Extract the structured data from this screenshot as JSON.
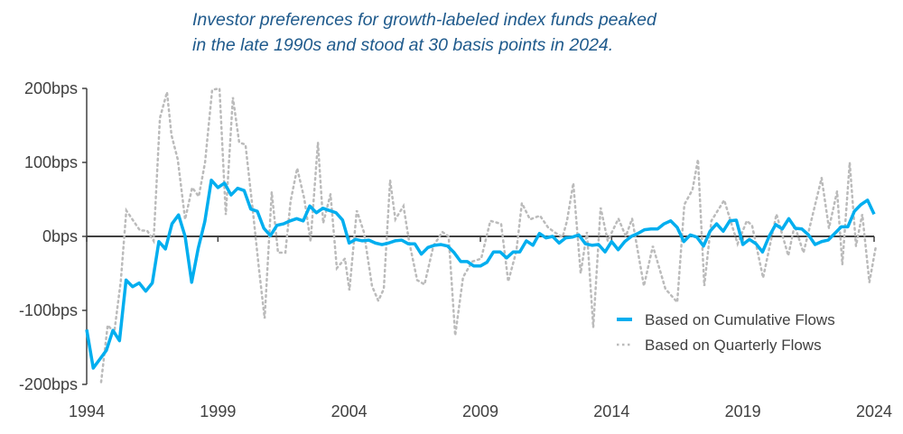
{
  "chart_data": {
    "type": "line",
    "title": "Investor preferences for growth-labeled index funds peaked in the late 1990s and stood at 30 basis points in 2024.",
    "title_lines": [
      "Investor preferences for growth-labeled index funds peaked",
      "in the late 1990s and stood at 30 basis points in 2024."
    ],
    "xlabel": "",
    "ylabel": "",
    "xlim": [
      1994,
      2024
    ],
    "ylim": [
      -200,
      200
    ],
    "x_ticks": [
      "1994",
      "1999",
      "2004",
      "2009",
      "2014",
      "2019",
      "2024"
    ],
    "y_ticks": [
      "200bps",
      "100bps",
      "0bps",
      "-100bps",
      "-200bps"
    ],
    "grid": false,
    "legend_position": "bottom-right",
    "series": [
      {
        "name": "Based on Cumulative Flows",
        "color": "#00AEEF",
        "style": "solid",
        "x_quarters_start": "1994Q1",
        "values": [
          -126,
          -178,
          -166,
          -154,
          -127,
          -141,
          -59,
          -68,
          -63,
          -74,
          -63,
          -7,
          -17,
          17,
          29,
          0,
          -62,
          -16,
          20,
          76,
          66,
          72,
          56,
          65,
          62,
          37,
          34,
          11,
          1,
          15,
          17,
          21,
          24,
          21,
          41,
          32,
          38,
          35,
          32,
          22,
          -9,
          -4,
          -6,
          -5,
          -9,
          -11,
          -9,
          -6,
          -5,
          -10,
          -10,
          -24,
          -15,
          -12,
          -11,
          -13,
          -22,
          -34,
          -34,
          -40,
          -40,
          -35,
          -21,
          -21,
          -29,
          -21,
          -21,
          -6,
          -12,
          4,
          -2,
          0,
          -9,
          -2,
          -1,
          2,
          -10,
          -12,
          -11,
          -21,
          -7,
          -18,
          -7,
          0,
          4,
          9,
          10,
          10,
          17,
          21,
          12,
          -7,
          2,
          -1,
          -13,
          7,
          17,
          7,
          21,
          22,
          -11,
          -4,
          -10,
          -21,
          0,
          16,
          10,
          24,
          11,
          10,
          2,
          -11,
          -7,
          -5,
          4,
          13,
          13,
          34,
          43,
          49,
          30
        ]
      },
      {
        "name": "Based on Quarterly Flows",
        "color": "#BBBBBB",
        "style": "dotted",
        "points": [
          [
            1994.55,
            -197
          ],
          [
            1994.8,
            -120
          ],
          [
            1995.05,
            -130
          ],
          [
            1995.3,
            -60
          ],
          [
            1995.51,
            35
          ],
          [
            1996.03,
            8
          ],
          [
            1996.3,
            8
          ],
          [
            1996.55,
            -6
          ],
          [
            1996.79,
            160
          ],
          [
            1997.06,
            195
          ],
          [
            1997.23,
            137
          ],
          [
            1997.47,
            104
          ],
          [
            1997.75,
            23
          ],
          [
            1998.02,
            66
          ],
          [
            1998.27,
            54
          ],
          [
            1998.51,
            100
          ],
          [
            1998.78,
            198
          ],
          [
            1999.06,
            200
          ],
          [
            1999.3,
            29
          ],
          [
            1999.57,
            188
          ],
          [
            1999.81,
            127
          ],
          [
            2000.05,
            124
          ],
          [
            2000.33,
            35
          ],
          [
            2000.57,
            -46
          ],
          [
            2000.78,
            -111
          ],
          [
            2001.05,
            60
          ],
          [
            2001.29,
            -22
          ],
          [
            2001.57,
            -22
          ],
          [
            2001.77,
            48
          ],
          [
            2002.02,
            92
          ],
          [
            2002.29,
            51
          ],
          [
            2002.53,
            -7
          ],
          [
            2002.81,
            127
          ],
          [
            2003.01,
            18
          ],
          [
            2003.29,
            57
          ],
          [
            2003.53,
            -43
          ],
          [
            2003.84,
            -30
          ],
          [
            2004.01,
            -73
          ],
          [
            2004.29,
            35
          ],
          [
            2004.56,
            6
          ],
          [
            2004.87,
            -67
          ],
          [
            2005.11,
            -87
          ],
          [
            2005.32,
            -71
          ],
          [
            2005.56,
            76
          ],
          [
            2005.76,
            23
          ],
          [
            2006.07,
            41
          ],
          [
            2006.28,
            -6
          ],
          [
            2006.59,
            -59
          ],
          [
            2006.87,
            -65
          ],
          [
            2007.21,
            -13
          ],
          [
            2007.55,
            6
          ],
          [
            2007.79,
            0
          ],
          [
            2008.04,
            -134
          ],
          [
            2008.34,
            -55
          ],
          [
            2008.69,
            -34
          ],
          [
            2009.03,
            -30
          ],
          [
            2009.38,
            21
          ],
          [
            2009.79,
            17
          ],
          [
            2010.06,
            -61
          ],
          [
            2010.37,
            -20
          ],
          [
            2010.58,
            45
          ],
          [
            2010.89,
            23
          ],
          [
            2011.27,
            28
          ],
          [
            2011.58,
            12
          ],
          [
            2011.85,
            5
          ],
          [
            2012.13,
            -1
          ],
          [
            2012.3,
            21
          ],
          [
            2012.54,
            72
          ],
          [
            2012.82,
            -50
          ],
          [
            2013.06,
            6
          ],
          [
            2013.3,
            -123
          ],
          [
            2013.58,
            39
          ],
          [
            2013.85,
            -6
          ],
          [
            2014.26,
            24
          ],
          [
            2014.54,
            0
          ],
          [
            2014.78,
            24
          ],
          [
            2015.23,
            -67
          ],
          [
            2015.57,
            -13
          ],
          [
            2016.05,
            -71
          ],
          [
            2016.5,
            -89
          ],
          [
            2016.77,
            43
          ],
          [
            2017.08,
            63
          ],
          [
            2017.29,
            104
          ],
          [
            2017.53,
            -67
          ],
          [
            2017.8,
            21
          ],
          [
            2018.29,
            49
          ],
          [
            2018.8,
            -10
          ],
          [
            2019.15,
            21
          ],
          [
            2019.35,
            15
          ],
          [
            2019.77,
            -56
          ],
          [
            2020.28,
            30
          ],
          [
            2020.73,
            -26
          ],
          [
            2020.97,
            15
          ],
          [
            2021.31,
            -22
          ],
          [
            2022.0,
            79
          ],
          [
            2022.28,
            11
          ],
          [
            2022.59,
            61
          ],
          [
            2022.79,
            -38
          ],
          [
            2023.07,
            100
          ],
          [
            2023.31,
            -13
          ],
          [
            2023.55,
            30
          ],
          [
            2023.82,
            -62
          ],
          [
            2024.07,
            -13
          ]
        ]
      }
    ]
  }
}
